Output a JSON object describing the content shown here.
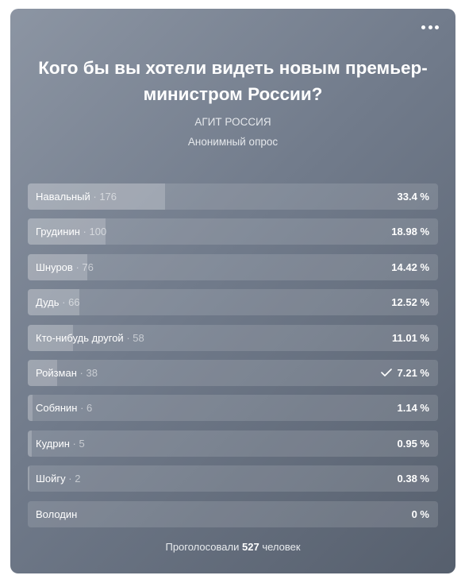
{
  "poll": {
    "question": "Кого бы вы хотели видеть новым премьер-министром России?",
    "owner": "АГИТ РОССИЯ",
    "type": "Анонимный опрос",
    "footer_prefix": "Проголосовали",
    "total_votes": "527",
    "footer_suffix": "человек",
    "options": [
      {
        "label": "Навальный",
        "count": "176",
        "percent": "33.4 %",
        "share": 0.334,
        "voted": false
      },
      {
        "label": "Грудинин",
        "count": "100",
        "percent": "18.98 %",
        "share": 0.1898,
        "voted": false
      },
      {
        "label": "Шнуров",
        "count": "76",
        "percent": "14.42 %",
        "share": 0.1442,
        "voted": false
      },
      {
        "label": "Дудь",
        "count": "66",
        "percent": "12.52 %",
        "share": 0.1252,
        "voted": false
      },
      {
        "label": "Кто-нибудь другой",
        "count": "58",
        "percent": "11.01 %",
        "share": 0.1101,
        "voted": false
      },
      {
        "label": "Ройзман",
        "count": "38",
        "percent": "7.21 %",
        "share": 0.0721,
        "voted": true
      },
      {
        "label": "Собянин",
        "count": "6",
        "percent": "1.14 %",
        "share": 0.0114,
        "voted": false
      },
      {
        "label": "Кудрин",
        "count": "5",
        "percent": "0.95 %",
        "share": 0.0095,
        "voted": false
      },
      {
        "label": "Шойгу",
        "count": "2",
        "percent": "0.38 %",
        "share": 0.0038,
        "voted": false
      },
      {
        "label": "Володин",
        "count": "",
        "percent": "0 %",
        "share": 0,
        "voted": false
      }
    ]
  },
  "icons": {
    "menu": "more-horizontal-icon",
    "voted": "check-icon"
  }
}
